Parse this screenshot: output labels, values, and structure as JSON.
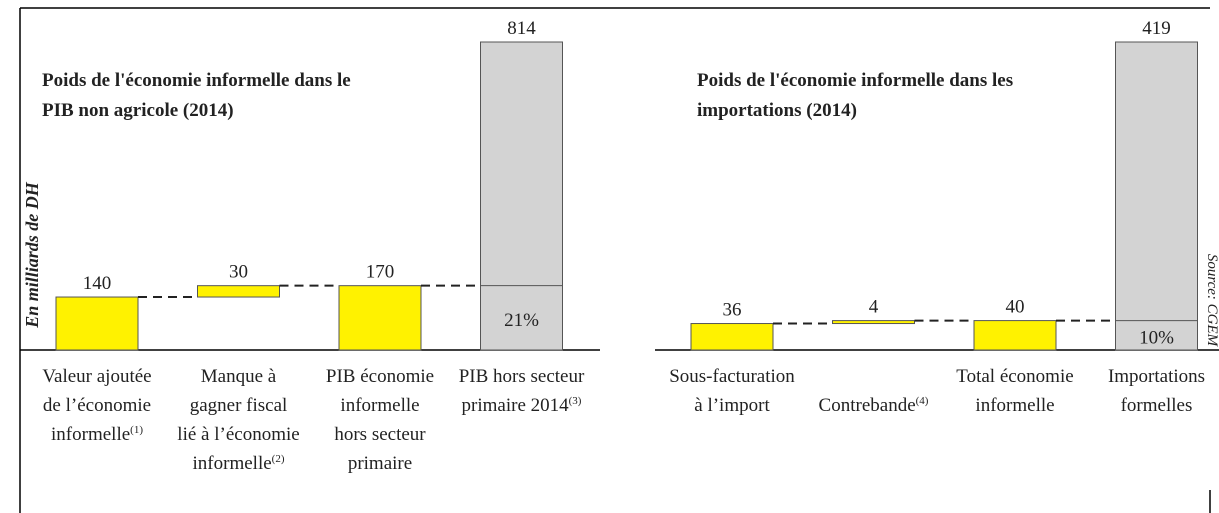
{
  "y_axis_label": "En milliards de DH",
  "source": "Source: CGEM",
  "chart_data": [
    {
      "type": "waterfall",
      "title": [
        "Poids de l'économie informelle dans le",
        "PIB non agricole (2014)"
      ],
      "categories": [
        [
          "Valeur ajoutée",
          "de l’économie",
          "informelle"
        ],
        [
          "Manque à",
          "gagner fiscal",
          "lié à l’économie",
          "informelle"
        ],
        [
          "PIB économie",
          "informelle",
          "hors secteur",
          "primaire"
        ],
        [
          "PIB hors secteur",
          "primaire 2014"
        ]
      ],
      "category_notes": [
        "(1)",
        "(2)",
        null,
        "(3)"
      ],
      "values": [
        140,
        30,
        170,
        814
      ],
      "measure": [
        "absolute",
        "relative",
        "total",
        "total"
      ],
      "colors": [
        "#fff200",
        "#fff200",
        "#fff200",
        "#d3d3d3"
      ],
      "annotation": "21%",
      "ylim": [
        0,
        814
      ]
    },
    {
      "type": "waterfall",
      "title": [
        "Poids de l'économie informelle dans les",
        "importations (2014)"
      ],
      "categories": [
        [
          "Sous-facturation",
          "à l’import"
        ],
        [
          "Contrebande"
        ],
        [
          "Total économie",
          "informelle"
        ],
        [
          "Importations",
          "formelles"
        ]
      ],
      "category_notes": [
        null,
        "(4)",
        null,
        null
      ],
      "values": [
        36,
        4,
        40,
        419
      ],
      "measure": [
        "absolute",
        "relative",
        "total",
        "total"
      ],
      "colors": [
        "#fff200",
        "#fff200",
        "#fff200",
        "#d3d3d3"
      ],
      "annotation": "10%",
      "ylim": [
        0,
        419
      ]
    }
  ]
}
